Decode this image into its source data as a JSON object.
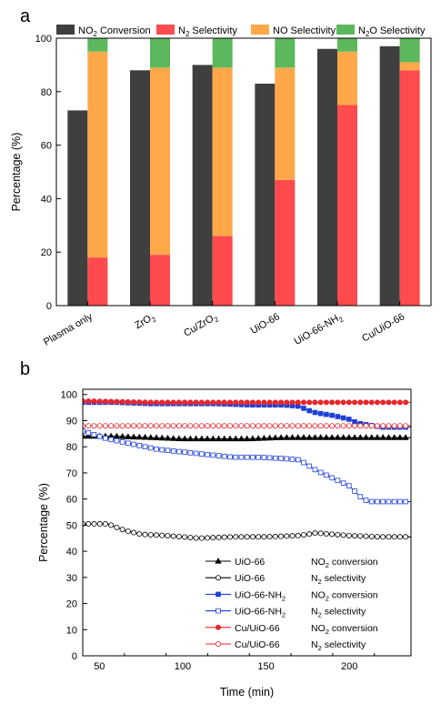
{
  "panel_labels": [
    "a",
    "b"
  ],
  "chart_data": [
    {
      "type": "bar",
      "stacked": true,
      "categories": [
        "Plasma only",
        "ZrO2",
        "Cu/ZrO2",
        "UiO-66",
        "UiO-66-NH2",
        "Cu/UiO-66"
      ],
      "category_labels": [
        {
          "base": "Plasma only",
          "sub": ""
        },
        {
          "base": "ZrO",
          "sub": "2"
        },
        {
          "base": "Cu/ZrO",
          "sub": "2"
        },
        {
          "base": "UiO-66",
          "sub": ""
        },
        {
          "base": "UiO-66-NH",
          "sub": "2"
        },
        {
          "base": "Cu/UiO-66",
          "sub": ""
        }
      ],
      "series": [
        {
          "name": "NO2 Conversion",
          "legend": {
            "pre": "NO",
            "sub": "2",
            "post": " Conversion"
          },
          "color": "#3f3f3f",
          "values": [
            73,
            88,
            90,
            83,
            96,
            97
          ],
          "stack": "conversion"
        },
        {
          "name": "N2 Selectivity",
          "legend": {
            "pre": "N",
            "sub": "2",
            "post": " Selectivity"
          },
          "color": "#ff4a4e",
          "values": [
            18,
            19,
            26,
            47,
            75,
            88
          ],
          "stack": "selectivity"
        },
        {
          "name": "NO Selectivity",
          "legend": {
            "pre": "NO Selectivity",
            "sub": "",
            "post": ""
          },
          "color": "#ffa84a",
          "values": [
            77,
            70,
            63,
            42,
            20,
            3
          ],
          "stack": "selectivity"
        },
        {
          "name": "N2O Selectivity",
          "legend": {
            "pre": "N",
            "sub": "2",
            "post": "O Selectivity"
          },
          "color": "#5cb85c",
          "values": [
            5,
            11,
            11,
            11,
            5,
            9
          ],
          "stack": "selectivity"
        }
      ],
      "ylabel": "Percentage (%)",
      "ylim": [
        0,
        100
      ],
      "yticks": [
        0,
        20,
        40,
        60,
        80,
        100
      ],
      "legend_position": "top"
    },
    {
      "type": "line",
      "xlabel": "Time (min)",
      "ylabel": "Percentage (%)",
      "xlim": [
        40,
        237
      ],
      "ylim": [
        0,
        102
      ],
      "xticks": [
        50,
        100,
        150,
        200
      ],
      "yticks": [
        0,
        10,
        20,
        30,
        40,
        50,
        60,
        70,
        80,
        90,
        100
      ],
      "legend_position": "bottom-right",
      "series": [
        {
          "name": "UiO-66 NO2 conversion",
          "label": "UiO-66",
          "metric": {
            "pre": "NO",
            "sub": "2",
            "post": " conversion"
          },
          "color": "#000000",
          "marker": "filled-triangle",
          "x": [
            40,
            60,
            80,
            100,
            120,
            140,
            160,
            180,
            200,
            220,
            237
          ],
          "y": [
            84,
            84,
            83.5,
            83,
            83,
            83,
            83.5,
            83.5,
            83.5,
            83.5,
            83.5
          ]
        },
        {
          "name": "UiO-66 N2 selectivity",
          "label": "UiO-66",
          "metric": {
            "pre": "N",
            "sub": "2",
            "post": " selectivity"
          },
          "color": "#000000",
          "marker": "open-circle",
          "x": [
            40,
            55,
            65,
            75,
            90,
            110,
            130,
            150,
            170,
            180,
            190,
            200,
            220,
            237
          ],
          "y": [
            50.5,
            50.5,
            48,
            46.5,
            46,
            45,
            45.5,
            45.5,
            46,
            47,
            46.5,
            46,
            45.5,
            45.5
          ]
        },
        {
          "name": "UiO-66-NH2 NO2 conversion",
          "label": {
            "pre": "UiO-66-NH",
            "sub": "2",
            "post": ""
          },
          "metric": {
            "pre": "NO",
            "sub": "2",
            "post": " conversion"
          },
          "color": "#1f3fd6",
          "marker": "filled-square",
          "x": [
            40,
            60,
            80,
            100,
            120,
            140,
            160,
            170,
            175,
            180,
            190,
            200,
            205,
            210,
            215,
            220,
            237
          ],
          "y": [
            97,
            97,
            96.5,
            96.5,
            96.5,
            96,
            96,
            95.5,
            94,
            93,
            92,
            90.5,
            89,
            88.5,
            88,
            87.5,
            87.5
          ]
        },
        {
          "name": "UiO-66-NH2 N2 selectivity",
          "label": {
            "pre": "UiO-66-NH",
            "sub": "2",
            "post": ""
          },
          "metric": {
            "pre": "N",
            "sub": "2",
            "post": " selectivity"
          },
          "color": "#1f3fd6",
          "marker": "open-square",
          "x": [
            40,
            55,
            70,
            85,
            100,
            115,
            130,
            145,
            160,
            170,
            180,
            190,
            200,
            208,
            212,
            220,
            237
          ],
          "y": [
            86,
            83,
            81,
            79,
            78,
            77,
            76,
            76,
            75.5,
            75,
            71,
            68,
            65,
            60,
            59,
            59,
            59
          ]
        },
        {
          "name": "Cu/UiO-66 NO2 conversion",
          "label": "Cu/UiO-66",
          "metric": {
            "pre": "NO",
            "sub": "2",
            "post": " conversion"
          },
          "color": "#e8262a",
          "marker": "filled-circle",
          "x": [
            40,
            80,
            120,
            160,
            200,
            237
          ],
          "y": [
            97.5,
            97,
            97,
            97,
            97,
            97
          ]
        },
        {
          "name": "Cu/UiO-66 N2 selectivity",
          "label": "Cu/UiO-66",
          "metric": {
            "pre": "N",
            "sub": "2",
            "post": " selectivity"
          },
          "color": "#e8262a",
          "marker": "open-circle",
          "x": [
            40,
            80,
            120,
            160,
            200,
            237
          ],
          "y": [
            88,
            88,
            88,
            88,
            88,
            88
          ]
        }
      ]
    }
  ]
}
